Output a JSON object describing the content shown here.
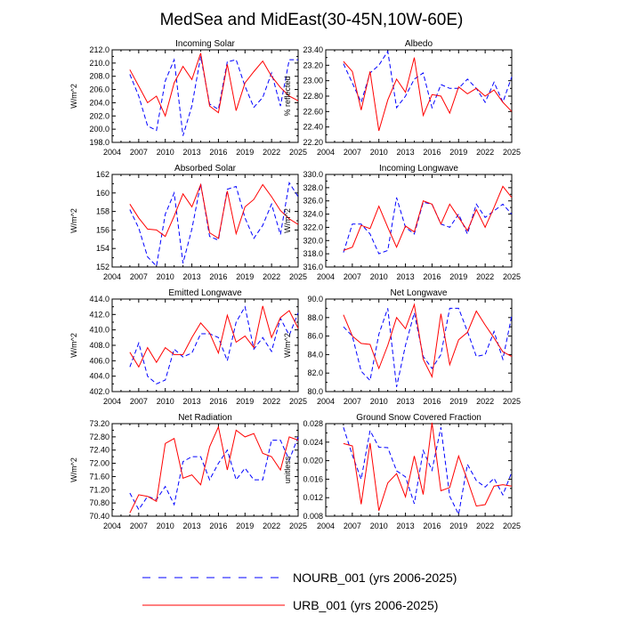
{
  "title": "MedSea and MidEast(30-45N,10W-60E)",
  "years": [
    2006,
    2007,
    2008,
    2009,
    2010,
    2011,
    2012,
    2013,
    2014,
    2015,
    2016,
    2017,
    2018,
    2019,
    2020,
    2021,
    2022,
    2023,
    2024,
    2025
  ],
  "x_ticks": [
    "2004",
    "2007",
    "2010",
    "2013",
    "2016",
    "2019",
    "2022",
    "2025"
  ],
  "legend": [
    {
      "name": "NOURB_001 (yrs 2006-2025)",
      "color": "#0000ff",
      "style": "dashed"
    },
    {
      "name": "URB_001 (yrs 2006-2025)",
      "color": "#ff0000",
      "style": "solid"
    }
  ],
  "chart_data": [
    {
      "type": "line",
      "title": "Incoming Solar",
      "ylabel": "W/m^2",
      "ylim": [
        198.0,
        212.0
      ],
      "yticks": [
        "198.0",
        "200.0",
        "202.0",
        "204.0",
        "206.0",
        "208.0",
        "210.0",
        "212.0"
      ],
      "series": [
        {
          "name": "NOURB_001",
          "values": [
            208.3,
            205.0,
            200.5,
            199.8,
            207.3,
            210.5,
            199.0,
            203.5,
            211.0,
            203.8,
            203.0,
            210.2,
            210.5,
            206.5,
            203.3,
            204.8,
            208.5,
            203.5,
            210.5,
            210.5
          ]
        },
        {
          "name": "URB_001",
          "values": [
            209.0,
            206.5,
            204.0,
            205.0,
            202.0,
            207.0,
            209.5,
            207.5,
            211.5,
            203.5,
            202.5,
            209.8,
            202.8,
            207.0,
            208.7,
            210.3,
            208.0,
            206.3,
            205.0,
            204.3
          ]
        }
      ]
    },
    {
      "type": "line",
      "title": "Albedo",
      "ylabel": "% reflected",
      "ylim": [
        22.2,
        23.4
      ],
      "yticks": [
        "22.20",
        "22.40",
        "22.60",
        "22.80",
        "23.00",
        "23.20",
        "23.40"
      ],
      "series": [
        {
          "name": "NOURB_001",
          "values": [
            23.22,
            22.97,
            22.72,
            23.1,
            23.2,
            23.38,
            22.65,
            22.8,
            23.02,
            23.1,
            22.65,
            22.95,
            22.9,
            22.9,
            23.02,
            22.9,
            22.72,
            22.98,
            22.72,
            23.05
          ]
        },
        {
          "name": "URB_001",
          "values": [
            23.25,
            23.12,
            22.62,
            23.12,
            22.35,
            22.75,
            23.02,
            22.85,
            23.3,
            22.55,
            22.82,
            22.8,
            22.58,
            22.92,
            22.83,
            22.9,
            22.8,
            22.88,
            22.72,
            22.6
          ]
        }
      ]
    },
    {
      "type": "line",
      "title": "Absorbed Solar",
      "ylabel": "W/m^2",
      "ylim": [
        152,
        162
      ],
      "yticks": [
        "152",
        "154",
        "156",
        "158",
        "160",
        "162"
      ],
      "series": [
        {
          "name": "NOURB_001",
          "values": [
            158.2,
            156.2,
            153.1,
            152.1,
            157.7,
            160.0,
            152.4,
            156.1,
            161.0,
            155.3,
            154.9,
            160.4,
            160.7,
            157.3,
            155.1,
            156.5,
            158.8,
            155.5,
            161.1,
            159.6
          ]
        },
        {
          "name": "URB_001",
          "values": [
            158.8,
            157.3,
            156.1,
            156.0,
            155.3,
            157.5,
            159.9,
            158.5,
            160.9,
            155.7,
            155.1,
            160.2,
            155.6,
            158.5,
            159.3,
            160.9,
            159.6,
            158.1,
            157.2,
            156.6
          ]
        }
      ]
    },
    {
      "type": "line",
      "title": "Incoming Longwave",
      "ylabel": "W/m^2",
      "ylim": [
        316.0,
        330.0
      ],
      "yticks": [
        "316.0",
        "318.0",
        "320.0",
        "322.0",
        "324.0",
        "326.0",
        "328.0",
        "330.0"
      ],
      "series": [
        {
          "name": "NOURB_001",
          "values": [
            318.2,
            322.5,
            322.5,
            321.0,
            318.0,
            318.5,
            326.5,
            322.0,
            321.0,
            325.8,
            325.5,
            322.5,
            322.0,
            324.0,
            321.0,
            325.5,
            323.5,
            324.5,
            325.5,
            324.0
          ]
        },
        {
          "name": "URB_001",
          "values": [
            318.5,
            319.0,
            322.3,
            321.8,
            325.2,
            322.0,
            319.0,
            322.2,
            321.3,
            326.0,
            325.5,
            322.5,
            325.5,
            323.5,
            321.5,
            324.7,
            322.0,
            325.0,
            328.2,
            326.5
          ]
        }
      ]
    },
    {
      "type": "line",
      "title": "Emitted Longwave",
      "ylabel": "W/m^2",
      "ylim": [
        402.0,
        414.0
      ],
      "yticks": [
        "402.0",
        "404.0",
        "406.0",
        "408.0",
        "410.0",
        "412.0",
        "414.0"
      ],
      "series": [
        {
          "name": "NOURB_001",
          "values": [
            405.2,
            408.3,
            404.0,
            403.0,
            403.5,
            407.5,
            406.5,
            407.0,
            409.5,
            409.5,
            409.0,
            406.0,
            411.0,
            413.0,
            407.5,
            409.0,
            407.2,
            411.5,
            409.3,
            412.2
          ]
        },
        {
          "name": "URB_001",
          "values": [
            407.1,
            405.2,
            407.7,
            405.8,
            407.7,
            406.8,
            406.8,
            409.0,
            410.9,
            409.6,
            407.0,
            411.9,
            408.4,
            409.2,
            407.7,
            413.1,
            409.0,
            411.6,
            412.5,
            410.2
          ]
        }
      ]
    },
    {
      "type": "line",
      "title": "Net Longwave",
      "ylabel": "W/m^2",
      "ylim": [
        80.0,
        90.0
      ],
      "yticks": [
        "80.0",
        "82.0",
        "84.0",
        "86.0",
        "88.0",
        "90.0"
      ],
      "series": [
        {
          "name": "NOURB_001",
          "values": [
            87.0,
            86.0,
            82.2,
            81.2,
            86.2,
            89.0,
            80.5,
            85.0,
            88.5,
            83.8,
            82.5,
            84.0,
            89.0,
            89.0,
            86.5,
            83.8,
            84.0,
            86.5,
            83.5,
            88.2
          ]
        },
        {
          "name": "URB_001",
          "values": [
            88.3,
            86.0,
            85.2,
            85.1,
            82.5,
            85.0,
            88.0,
            86.8,
            89.4,
            83.5,
            81.6,
            88.4,
            82.9,
            85.6,
            86.4,
            88.7,
            87.2,
            85.8,
            84.3,
            83.8
          ]
        }
      ]
    },
    {
      "type": "line",
      "title": "Net Radiation",
      "ylabel": "W/m^2",
      "ylim": [
        70.4,
        73.2
      ],
      "yticks": [
        "70.40",
        "70.80",
        "71.20",
        "71.60",
        "72.00",
        "72.40",
        "72.80",
        "73.20"
      ],
      "series": [
        {
          "name": "NOURB_001",
          "values": [
            71.1,
            70.6,
            71.0,
            70.9,
            71.3,
            70.75,
            72.05,
            72.2,
            72.2,
            71.5,
            72.0,
            72.4,
            71.5,
            71.85,
            71.5,
            71.5,
            72.7,
            72.7,
            72.1,
            72.8
          ]
        },
        {
          "name": "URB_001",
          "values": [
            70.5,
            71.05,
            71.0,
            70.85,
            72.6,
            72.75,
            71.55,
            71.65,
            71.35,
            72.5,
            73.1,
            71.8,
            73.0,
            72.8,
            72.9,
            72.3,
            72.2,
            71.8,
            72.8,
            72.7
          ]
        }
      ]
    },
    {
      "type": "line",
      "title": "Ground Snow Covered Fraction",
      "ylabel": "unitless",
      "ylim": [
        0.008,
        0.028
      ],
      "yticks": [
        "0.008",
        "0.012",
        "0.016",
        "0.020",
        "0.024",
        "0.028"
      ],
      "series": [
        {
          "name": "NOURB_001",
          "values": [
            0.0272,
            0.0212,
            0.016,
            0.0265,
            0.0229,
            0.0228,
            0.0178,
            0.0165,
            0.0107,
            0.0222,
            0.0179,
            0.0272,
            0.0123,
            0.0084,
            0.0192,
            0.0157,
            0.0143,
            0.0162,
            0.0126,
            0.0175
          ]
        },
        {
          "name": "URB_001",
          "values": [
            0.0237,
            0.0232,
            0.0106,
            0.0238,
            0.0092,
            0.0152,
            0.0172,
            0.0122,
            0.021,
            0.0127,
            0.0282,
            0.0135,
            0.0142,
            0.021,
            0.0158,
            0.0102,
            0.0105,
            0.0145,
            0.0148,
            0.0145
          ]
        }
      ]
    }
  ]
}
